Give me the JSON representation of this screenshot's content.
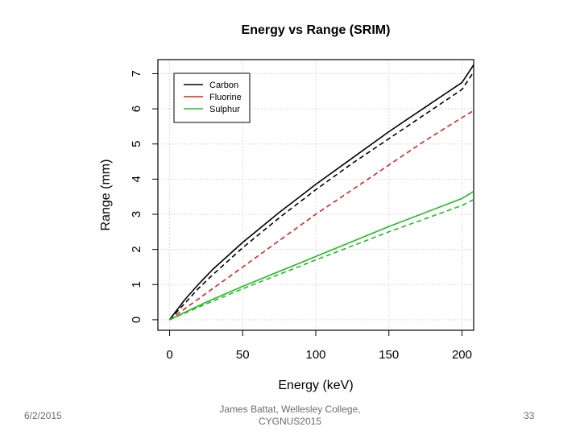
{
  "chart_data": {
    "type": "line",
    "title": "Energy vs Range (SRIM)",
    "xlabel": "Energy (keV)",
    "ylabel": "Range (mm)",
    "xlim": [
      -8,
      208
    ],
    "ylim": [
      -0.3,
      7.4
    ],
    "xticks": [
      0,
      50,
      100,
      150,
      200
    ],
    "yticks": [
      0,
      1,
      2,
      3,
      4,
      5,
      6,
      7
    ],
    "grid": true,
    "legend_position": "top-left",
    "legend": [
      {
        "name": "Carbon",
        "color": "#000000"
      },
      {
        "name": "Fluorine",
        "color": "#dd2222"
      },
      {
        "name": "Sulphur",
        "color": "#22bb22"
      }
    ],
    "series": [
      {
        "name": "Carbon",
        "color": "#000000",
        "dash": false,
        "x": [
          0,
          10,
          20,
          30,
          50,
          75,
          100,
          125,
          150,
          175,
          200,
          208
        ],
        "y": [
          0,
          0.55,
          1.02,
          1.45,
          2.2,
          3.05,
          3.85,
          4.6,
          5.35,
          6.05,
          6.75,
          7.25
        ]
      },
      {
        "name": "Carbon (dashed)",
        "color": "#000000",
        "dash": true,
        "x": [
          0,
          10,
          20,
          30,
          50,
          75,
          100,
          125,
          150,
          175,
          200,
          208
        ],
        "y": [
          0,
          0.45,
          0.9,
          1.3,
          2.05,
          2.9,
          3.7,
          4.45,
          5.15,
          5.85,
          6.55,
          7.05
        ]
      },
      {
        "name": "Fluorine (dashed)",
        "color": "#dd2222",
        "dash": true,
        "x": [
          0,
          25,
          50,
          75,
          100,
          125,
          150,
          175,
          200,
          208
        ],
        "y": [
          0,
          0.75,
          1.5,
          2.25,
          3.0,
          3.7,
          4.4,
          5.1,
          5.75,
          5.95
        ]
      },
      {
        "name": "Sulphur",
        "color": "#22bb22",
        "dash": false,
        "x": [
          0,
          25,
          50,
          100,
          150,
          200,
          208
        ],
        "y": [
          0,
          0.5,
          0.95,
          1.8,
          2.65,
          3.45,
          3.65
        ]
      },
      {
        "name": "Sulphur (dashed)",
        "color": "#22bb22",
        "dash": true,
        "x": [
          0,
          25,
          50,
          100,
          150,
          200,
          208
        ],
        "y": [
          0,
          0.45,
          0.88,
          1.7,
          2.5,
          3.25,
          3.42
        ]
      }
    ]
  },
  "footer": {
    "date": "6/2/2015",
    "author_line1": "James Battat, Wellesley College,",
    "author_line2": "CYGNUS2015",
    "page": "33"
  }
}
